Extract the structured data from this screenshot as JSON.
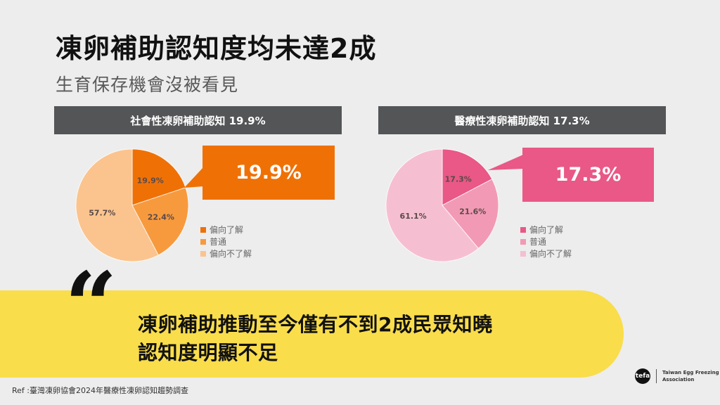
{
  "header": {
    "title": "凍卵補助認知度均未達2成",
    "subtitle": "生育保存機會沒被看見"
  },
  "panels": [
    {
      "heading": "社會性凍卵補助認知 19.9%",
      "callout": "19.9%",
      "accent_color": "#ef7106",
      "slices": [
        {
          "label": "偏向了解",
          "value": 19.9,
          "display": "19.9%",
          "color": "#ef7106"
        },
        {
          "label": "普通",
          "value": 22.4,
          "display": "22.4%",
          "color": "#f79a3e"
        },
        {
          "label": "偏向不了解",
          "value": 57.7,
          "display": "57.7%",
          "color": "#fbc48e"
        }
      ],
      "legend": [
        "偏向了解",
        "普通",
        "偏向不了解"
      ]
    },
    {
      "heading": "醫療性凍卵補助認知 17.3%",
      "callout": "17.3%",
      "accent_color": "#e95886",
      "slices": [
        {
          "label": "偏向了解",
          "value": 17.3,
          "display": "17.3%",
          "color": "#e95886"
        },
        {
          "label": "普通",
          "value": 21.6,
          "display": "21.6%",
          "color": "#f29ab5"
        },
        {
          "label": "偏向不了解",
          "value": 61.1,
          "display": "61.1%",
          "color": "#f6bfd1"
        }
      ],
      "legend": [
        "偏向了解",
        "普通",
        "偏向不了解"
      ]
    }
  ],
  "quote": {
    "mark": "“",
    "line1": "凍卵補助推動至今僅有不到2成民眾知曉",
    "line2": "認知度明顯不足"
  },
  "footer": {
    "ref": "Ref :臺灣凍卵協會2024年醫療性凍卵認知趨勢調查",
    "logo_mark": "tefa",
    "logo_line1": "Taiwan Egg Freezing",
    "logo_line2": "Association"
  },
  "chart_data": [
    {
      "type": "pie",
      "title": "社會性凍卵補助認知 19.9%",
      "categories": [
        "偏向了解",
        "普通",
        "偏向不了解"
      ],
      "values": [
        19.9,
        22.4,
        57.7
      ],
      "colors": [
        "#ef7106",
        "#f79a3e",
        "#fbc48e"
      ],
      "highlight": "19.9%",
      "legend_position": "right"
    },
    {
      "type": "pie",
      "title": "醫療性凍卵補助認知 17.3%",
      "categories": [
        "偏向了解",
        "普通",
        "偏向不了解"
      ],
      "values": [
        17.3,
        21.6,
        61.1
      ],
      "colors": [
        "#e95886",
        "#f29ab5",
        "#f6bfd1"
      ],
      "highlight": "17.3%",
      "legend_position": "right"
    }
  ]
}
